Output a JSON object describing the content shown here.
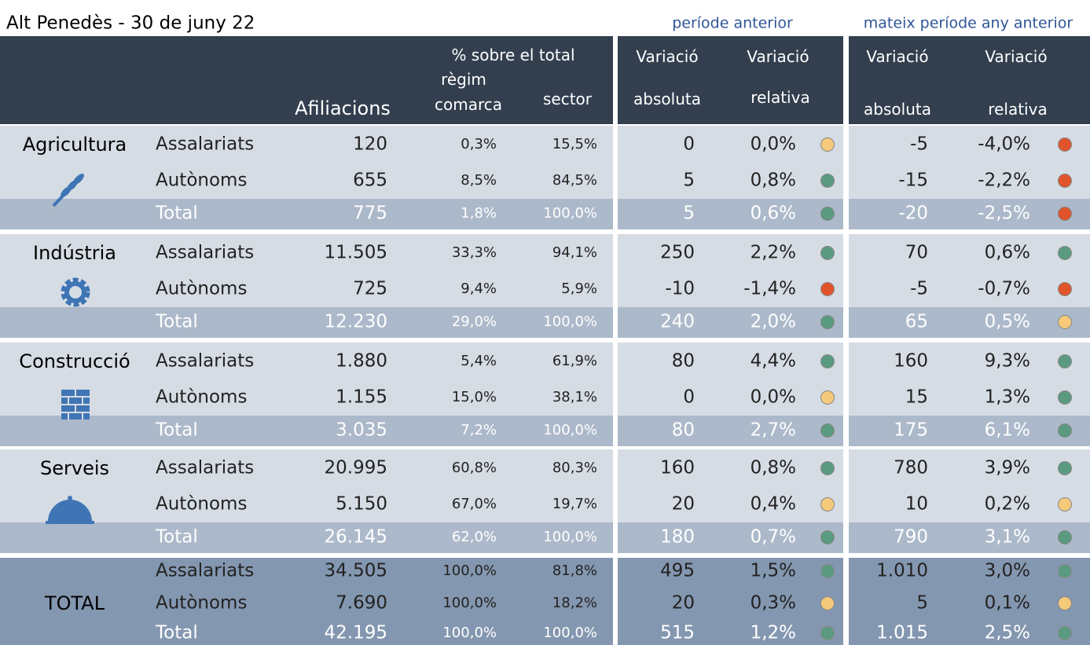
{
  "title": "Alt Penedès - 30 de juny 22",
  "group_headers": [
    "període anterior",
    "mateix període any anterior"
  ],
  "header": {
    "pct_total": "% sobre el total",
    "regim": "règim",
    "comarca": "comarca",
    "sector": "sector",
    "afiliacions": "Afiliacions",
    "var1": "Variació",
    "var2": "Variació",
    "abs1": "absoluta",
    "rel1": "relativa",
    "var3": "Variació",
    "var4": "Variació",
    "abs2": "absoluta",
    "rel2": "relativa"
  },
  "sections": [
    {
      "name": "Agricultura",
      "rows": [
        {
          "label": "Assalariats",
          "values": [
            "120",
            "0,3%",
            "15,5%",
            "0",
            "0,0%",
            "-5",
            "-4,0%"
          ],
          "dots": [
            "#f4c97a",
            "#e0542c"
          ]
        },
        {
          "label": "Autònoms",
          "values": [
            "655",
            "8,5%",
            "84,5%",
            "5",
            "0,8%",
            "-15",
            "-2,2%"
          ],
          "dots": [
            "#5a9a80",
            "#e0542c"
          ]
        },
        {
          "label": "Total",
          "values": [
            "775",
            "1,8%",
            "100,0%",
            "5",
            "0,6%",
            "-20",
            "-2,5%"
          ],
          "dots": [
            "#5a9a80",
            "#e0542c"
          ]
        }
      ]
    },
    {
      "name": "Indústria",
      "rows": [
        {
          "label": "Assalariats",
          "values": [
            "11.505",
            "33,3%",
            "94,1%",
            "250",
            "2,2%",
            "70",
            "0,6%"
          ],
          "dots": [
            "#5a9a80",
            "#5a9a80"
          ]
        },
        {
          "label": "Autònoms",
          "values": [
            "725",
            "9,4%",
            "5,9%",
            "-10",
            "-1,4%",
            "-5",
            "-0,7%"
          ],
          "dots": [
            "#e0542c",
            "#e0542c"
          ]
        },
        {
          "label": "Total",
          "values": [
            "12.230",
            "29,0%",
            "100,0%",
            "240",
            "2,0%",
            "65",
            "0,5%"
          ],
          "dots": [
            "#5a9a80",
            "#f4c97a"
          ]
        }
      ]
    },
    {
      "name": "Construcció",
      "rows": [
        {
          "label": "Assalariats",
          "values": [
            "1.880",
            "5,4%",
            "61,9%",
            "80",
            "4,4%",
            "160",
            "9,3%"
          ],
          "dots": [
            "#5a9a80",
            "#5a9a80"
          ]
        },
        {
          "label": "Autònoms",
          "values": [
            "1.155",
            "15,0%",
            "38,1%",
            "0",
            "0,0%",
            "15",
            "1,3%"
          ],
          "dots": [
            "#f4c97a",
            "#5a9a80"
          ]
        },
        {
          "label": "Total",
          "values": [
            "3.035",
            "7,2%",
            "100,0%",
            "80",
            "2,7%",
            "175",
            "6,1%"
          ],
          "dots": [
            "#5a9a80",
            "#5a9a80"
          ]
        }
      ]
    },
    {
      "name": "Serveis",
      "rows": [
        {
          "label": "Assalariats",
          "values": [
            "20.995",
            "60,8%",
            "80,3%",
            "160",
            "0,8%",
            "780",
            "3,9%"
          ],
          "dots": [
            "#5a9a80",
            "#5a9a80"
          ]
        },
        {
          "label": "Autònoms",
          "values": [
            "5.150",
            "67,0%",
            "19,7%",
            "20",
            "0,4%",
            "10",
            "0,2%"
          ],
          "dots": [
            "#f4c97a",
            "#f4c97a"
          ]
        },
        {
          "label": "Total",
          "values": [
            "26.145",
            "62,0%",
            "100,0%",
            "180",
            "0,7%",
            "790",
            "3,1%"
          ],
          "dots": [
            "#5a9a80",
            "#5a9a80"
          ]
        }
      ]
    },
    {
      "name": "TOTAL",
      "rows": [
        {
          "label": "Assalariats",
          "values": [
            "34.505",
            "100,0%",
            "81,8%",
            "495",
            "1,5%",
            "1.010",
            "3,0%"
          ],
          "dots": [
            "#5a9a80",
            "#5a9a80"
          ]
        },
        {
          "label": "Autònoms",
          "values": [
            "7.690",
            "100,0%",
            "18,2%",
            "20",
            "0,3%",
            "5",
            "0,1%"
          ],
          "dots": [
            "#f4c97a",
            "#f4c97a"
          ]
        },
        {
          "label": "Total",
          "values": [
            "42.195",
            "100,0%",
            "100,0%",
            "515",
            "1,2%",
            "1.015",
            "2,5%"
          ],
          "dots": [
            "#5a9a80",
            "#5a9a80"
          ]
        }
      ]
    }
  ]
}
